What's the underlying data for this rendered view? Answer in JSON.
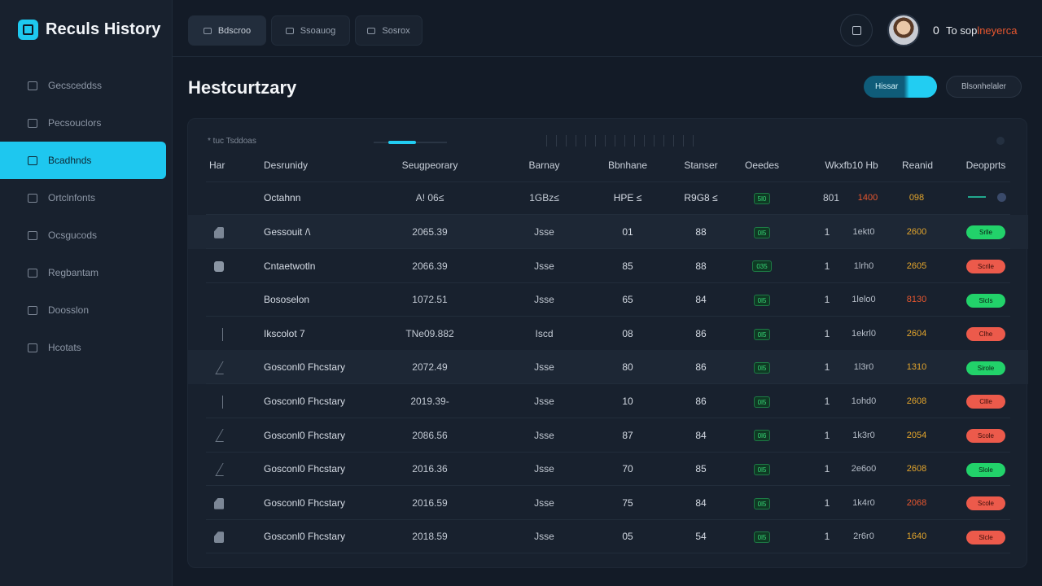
{
  "app": {
    "title": "Reculs History",
    "brand_color": "#1ec9ef"
  },
  "sidebar": {
    "items": [
      {
        "label": "Gecsceddss",
        "icon": "grid-icon",
        "active": false
      },
      {
        "label": "Pecsouclors",
        "icon": "list-icon",
        "active": false
      },
      {
        "label": "Bcadhnds",
        "icon": "history-icon",
        "active": true
      },
      {
        "label": "Ortclnfonts",
        "icon": "chart-icon",
        "active": false
      },
      {
        "label": "Ocsgucods",
        "icon": "lock-icon",
        "active": false
      },
      {
        "label": "Regbantam",
        "icon": "bar-icon",
        "active": false
      },
      {
        "label": "Doosslon",
        "icon": "folder-icon",
        "active": false
      },
      {
        "label": "Hcotats",
        "icon": "dot-icon",
        "active": false
      }
    ]
  },
  "topbar": {
    "tabs": [
      {
        "label": "Bdscroo",
        "active": true
      },
      {
        "label": "Ssoauog",
        "active": false
      },
      {
        "label": "Sosrox",
        "active": false
      }
    ],
    "user_count": "0",
    "user_name": "To sop",
    "user_suffix": "lneyerca"
  },
  "header": {
    "title": "Hestcurtzary",
    "primary_action": "Hissar",
    "secondary_action": "Blsonhelaler"
  },
  "filters": {
    "label": "* tuc Tsddoas"
  },
  "table": {
    "columns": [
      "Har",
      "Desrunidy",
      "Seugpeorary",
      "Barnay",
      "Bbnhane",
      "Stanser",
      "Oeedes",
      "Wkxfb10 Hb",
      "Reanid",
      "Deopprts"
    ],
    "summary": {
      "desc": "Octahnn",
      "code": "A! 06≤",
      "cat": "1GBz≤",
      "n1": "HPE ≤",
      "n2": "R9G8 ≤",
      "badge": "5l0",
      "one": "801",
      "size": "1400",
      "val": "098"
    },
    "rows": [
      {
        "shape": "wedge",
        "desc": "Gessouit /\\",
        "code": "2065.39",
        "cat": "Jsse",
        "n1": "01",
        "n2": "88",
        "badge": "0l5",
        "one": "1",
        "size": "1ekt0",
        "val": "2600",
        "val_color": "#e3a52c",
        "status": "Srlle",
        "status_color": "green"
      },
      {
        "shape": "square",
        "desc": "Cntaetwotln",
        "code": "2066.39",
        "cat": "Jsse",
        "n1": "85",
        "n2": "88",
        "badge": "035",
        "one": "1",
        "size": "1lrh0",
        "val": "2605",
        "val_color": "#e3a52c",
        "status": "Scrile",
        "status_color": "red"
      },
      {
        "shape": "none",
        "desc": "Bososelon",
        "code": "1072.51",
        "cat": "Jsse",
        "n1": "65",
        "n2": "84",
        "badge": "0l5",
        "one": "1",
        "size": "1lelo0",
        "val": "8130",
        "val_color": "#e8572f",
        "status": "Slcls",
        "status_color": "green"
      },
      {
        "shape": "line",
        "desc": "Ikscolot 7",
        "code": "TNe09.882",
        "cat": "Iscd",
        "n1": "08",
        "n2": "86",
        "badge": "0l5",
        "one": "1",
        "size": "1ekrl0",
        "val": "2604",
        "val_color": "#e3a52c",
        "status": "Clhe",
        "status_color": "red"
      },
      {
        "shape": "tri",
        "desc": "Gosconl0 Fhcstary",
        "code": "2072.49",
        "cat": "Jsse",
        "n1": "80",
        "n2": "86",
        "badge": "0l5",
        "one": "1",
        "size": "1l3r0",
        "val": "1310",
        "val_color": "#e3a52c",
        "status": "Sirole",
        "status_color": "green"
      },
      {
        "shape": "line",
        "desc": "Gosconl0 Fhcstary",
        "code": "2019.39-",
        "cat": "Jsse",
        "n1": "10",
        "n2": "86",
        "badge": "0l5",
        "one": "1",
        "size": "1ohd0",
        "val": "2608",
        "val_color": "#e3a52c",
        "status": "Cllle",
        "status_color": "red"
      },
      {
        "shape": "tri",
        "desc": "Gosconl0 Fhcstary",
        "code": "2086.56",
        "cat": "Jsse",
        "n1": "87",
        "n2": "84",
        "badge": "0l6",
        "one": "1",
        "size": "1k3r0",
        "val": "2054",
        "val_color": "#e3a52c",
        "status": "Scole",
        "status_color": "red"
      },
      {
        "shape": "tri",
        "desc": "Gosconl0 Fhcstary",
        "code": "2016.36",
        "cat": "Jsse",
        "n1": "70",
        "n2": "85",
        "badge": "0l5",
        "one": "1",
        "size": "2e6o0",
        "val": "2608",
        "val_color": "#e3a52c",
        "status": "Slole",
        "status_color": "green"
      },
      {
        "shape": "wedge",
        "desc": "Gosconl0 Fhcstary",
        "code": "2016.59",
        "cat": "Jsse",
        "n1": "75",
        "n2": "84",
        "badge": "0l5",
        "one": "1",
        "size": "1k4r0",
        "val": "2068",
        "val_color": "#e8572f",
        "status": "Scole",
        "status_color": "red"
      },
      {
        "shape": "wedge",
        "desc": "Gosconl0 Fhcstary",
        "code": "2018.59",
        "cat": "Jsse",
        "n1": "05",
        "n2": "54",
        "badge": "0l5",
        "one": "1",
        "size": "2r6r0",
        "val": "1640",
        "val_color": "#e3a52c",
        "status": "Slcle",
        "status_color": "red"
      }
    ]
  }
}
